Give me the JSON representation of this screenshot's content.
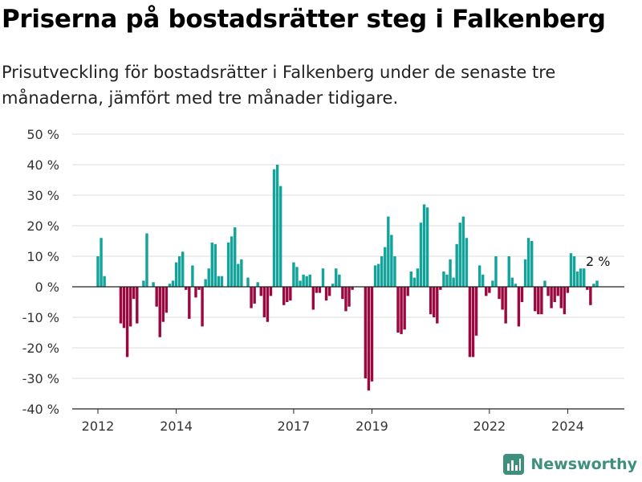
{
  "title": "Priserna på bostadsrätter steg i Falkenberg",
  "subtitle": "Prisutveckling för bostadsrätter i Falkenberg under de senaste tre månaderna, jämfört med tre månader tidigare.",
  "brand": {
    "name": "Newsworthy",
    "icon": "newsworthy-logo-icon"
  },
  "colors": {
    "positive": "#13a39a",
    "negative": "#9b0840",
    "grid": "#dddddd",
    "text": "#333333"
  },
  "chart_data": {
    "type": "bar",
    "x_ticks": [
      "2012",
      "2014",
      "2017",
      "2019",
      "2022",
      "2024"
    ],
    "x_tick_years": [
      2012,
      2014,
      2017,
      2019,
      2022,
      2024
    ],
    "ylim": [
      -40,
      50
    ],
    "y_ticks": [
      -40,
      -30,
      -20,
      -10,
      0,
      10,
      20,
      30,
      40,
      50
    ],
    "y_unit": "%",
    "grid": true,
    "legend": "none",
    "start": "2012-01",
    "annotation": {
      "text": "2 %",
      "value": 2,
      "position": "last"
    },
    "values": [
      10,
      16,
      3.5,
      null,
      null,
      null,
      null,
      -12,
      -13.5,
      -23,
      -13,
      -4,
      -12,
      null,
      2,
      17.5,
      null,
      1.5,
      -6.5,
      -16.5,
      -11.5,
      -8.5,
      1,
      2,
      8,
      10,
      11.5,
      -1,
      -10.5,
      7,
      -3.5,
      -1,
      -13,
      2.5,
      6,
      14.5,
      14,
      3.5,
      3.5,
      null,
      14.5,
      16.5,
      19.5,
      7.5,
      9,
      null,
      3,
      -7,
      -5.5,
      1.5,
      -3,
      -10,
      -11.5,
      -3,
      38.5,
      40,
      33,
      -6,
      -5,
      -4.5,
      8,
      6.5,
      2,
      4,
      3.5,
      4,
      -7.5,
      -2,
      -2,
      6,
      -4.5,
      -3,
      1,
      6,
      4,
      -4,
      -8,
      -6.5,
      -1,
      null,
      null,
      null,
      -30,
      -34,
      -31,
      7,
      7.5,
      10,
      13,
      23,
      17,
      10,
      -15,
      -15.5,
      -14,
      -3,
      5,
      3,
      6,
      21,
      27,
      26,
      -9,
      -10,
      -12,
      -1,
      5,
      4,
      9,
      3,
      14,
      21,
      23,
      16,
      -23,
      -23,
      -16,
      7,
      4,
      -3,
      -2,
      2,
      10,
      -4,
      -7.5,
      -12,
      10,
      3,
      1,
      -13,
      -5,
      9,
      16,
      15,
      -8,
      -9,
      -9,
      2,
      -3,
      -7,
      -5,
      -3,
      -7,
      -9,
      -2,
      11,
      10,
      5,
      6,
      6,
      -1,
      -6,
      1,
      2
    ]
  }
}
